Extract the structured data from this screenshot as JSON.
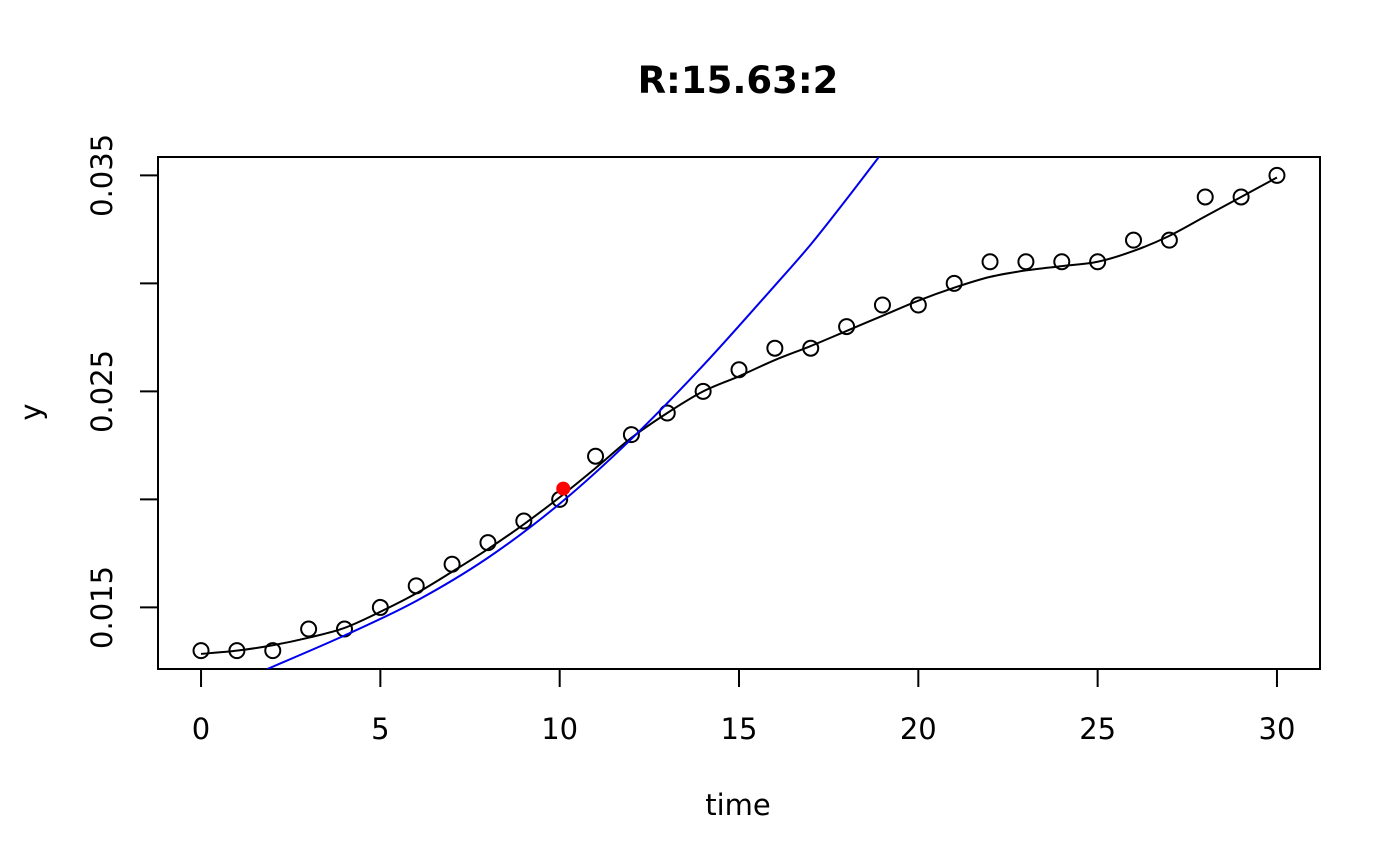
{
  "chart_data": {
    "type": "scatter",
    "title": "R:15.63:2",
    "xlabel": "time",
    "ylabel": "y",
    "xlim": [
      -1.2,
      31.2
    ],
    "ylim": [
      0.01215,
      0.03585
    ],
    "x_ticks": [
      0,
      5,
      10,
      15,
      20,
      25,
      30
    ],
    "x_tick_labels": [
      "0",
      "5",
      "10",
      "15",
      "20",
      "25",
      "30"
    ],
    "y_ticks": [
      0.015,
      0.02,
      0.025,
      0.03,
      0.035
    ],
    "y_tick_labels": [
      "0.015",
      "",
      "0.025",
      "",
      "0.035"
    ],
    "grid": false,
    "series": [
      {
        "kind": "points",
        "color": "#000000",
        "x": [
          0,
          1,
          2,
          3,
          4,
          5,
          6,
          7,
          8,
          9,
          10,
          11,
          12,
          13,
          14,
          15,
          16,
          17,
          18,
          19,
          20,
          21,
          22,
          23,
          24,
          25,
          26,
          27,
          28,
          29,
          30
        ],
        "y": [
          0.013,
          0.013,
          0.013,
          0.014,
          0.014,
          0.015,
          0.016,
          0.017,
          0.018,
          0.019,
          0.02,
          0.022,
          0.023,
          0.024,
          0.025,
          0.026,
          0.027,
          0.027,
          0.028,
          0.029,
          0.029,
          0.03,
          0.031,
          0.031,
          0.031,
          0.031,
          0.032,
          0.032,
          0.034,
          0.034,
          0.035
        ]
      },
      {
        "kind": "smooth-line",
        "color": "#000000",
        "x": [
          0,
          1,
          2,
          3,
          4,
          5,
          6,
          7,
          8,
          9,
          10,
          11,
          12,
          13,
          14,
          15,
          16,
          17,
          18,
          19,
          20,
          21,
          22,
          23,
          24,
          25,
          26,
          27,
          28,
          29,
          30
        ],
        "y": [
          0.01285,
          0.013,
          0.01325,
          0.0136,
          0.01405,
          0.0148,
          0.01565,
          0.01665,
          0.0177,
          0.01885,
          0.0201,
          0.02145,
          0.02285,
          0.024,
          0.025,
          0.0257,
          0.02645,
          0.0271,
          0.0278,
          0.0285,
          0.0292,
          0.0298,
          0.0303,
          0.0306,
          0.0308,
          0.031,
          0.0315,
          0.0322,
          0.0331,
          0.034,
          0.0349
        ]
      },
      {
        "kind": "exponential-fit",
        "color": "#0000ee",
        "x": [
          1.85,
          4,
          6,
          8,
          10,
          12,
          14,
          16,
          17,
          18,
          18.9
        ],
        "y": [
          0.01215,
          0.0137,
          0.0153,
          0.0173,
          0.0198,
          0.0228,
          0.0262,
          0.0299,
          0.0318,
          0.0339,
          0.03585
        ]
      },
      {
        "kind": "highlight-point",
        "color": "#ff0000",
        "x": [
          10.1
        ],
        "y": [
          0.0205
        ]
      }
    ]
  }
}
